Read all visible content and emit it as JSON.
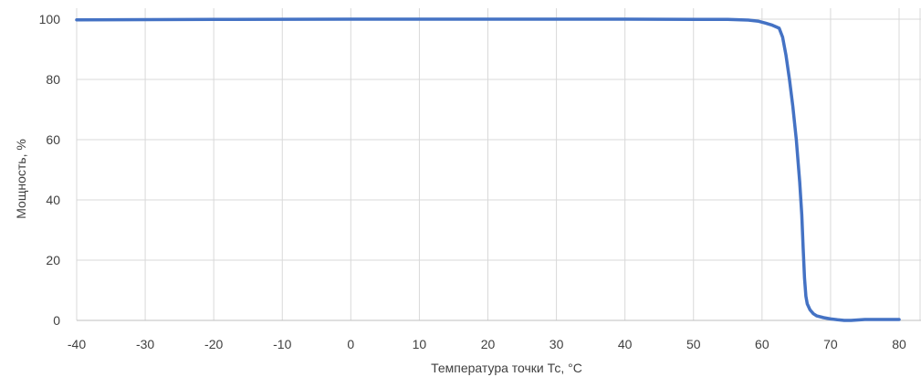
{
  "chart_data": {
    "type": "line",
    "title": "",
    "xlabel": "Температура точки Тс, °С",
    "ylabel": "Мощность, %",
    "xlim": [
      -40,
      80
    ],
    "ylim": [
      0,
      100
    ],
    "x_ticks": [
      -40,
      -30,
      -20,
      -10,
      0,
      10,
      20,
      30,
      40,
      50,
      60,
      70,
      80
    ],
    "y_ticks": [
      0,
      20,
      40,
      60,
      80,
      100
    ],
    "grid": {
      "vertical": true,
      "horizontal": true
    },
    "legend": "none",
    "series": [
      {
        "color": "#4472c4",
        "x": [
          -40,
          -20,
          0,
          20,
          40,
          55,
          58,
          59.5,
          60.5,
          61.5,
          62.5,
          63,
          63.5,
          64,
          64.5,
          65,
          65.5,
          65.8,
          66,
          66.2,
          66.4,
          66.6,
          67,
          67.5,
          68,
          69,
          70,
          71,
          72,
          73,
          75,
          78,
          80
        ],
        "y": [
          99.8,
          99.9,
          100,
          100,
          100,
          99.9,
          99.7,
          99.3,
          98.7,
          98,
          97,
          94,
          88,
          80,
          71,
          60,
          46,
          35,
          24,
          14,
          8,
          5.5,
          3.5,
          2.2,
          1.5,
          0.9,
          0.5,
          0.2,
          0,
          0,
          0.3,
          0.3,
          0.3
        ]
      }
    ]
  }
}
